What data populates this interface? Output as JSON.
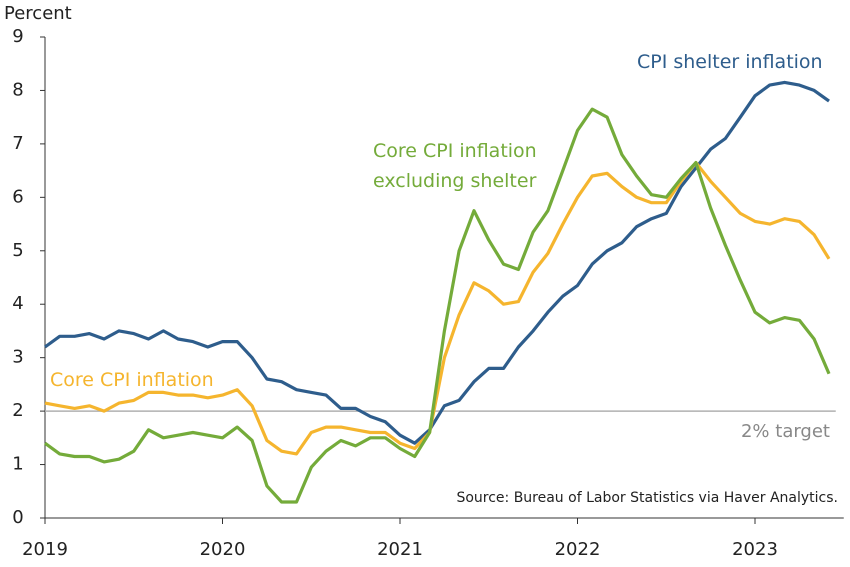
{
  "chart_data": {
    "type": "line",
    "y_label": "Percent",
    "source": "Source: Bureau of Labor Statistics via Haver Analytics.",
    "x": [
      2019,
      2019.083,
      2019.167,
      2019.25,
      2019.333,
      2019.417,
      2019.5,
      2019.583,
      2019.667,
      2019.75,
      2019.833,
      2019.917,
      2020,
      2020.083,
      2020.167,
      2020.25,
      2020.333,
      2020.417,
      2020.5,
      2020.583,
      2020.667,
      2020.75,
      2020.833,
      2020.917,
      2021,
      2021.083,
      2021.167,
      2021.25,
      2021.333,
      2021.417,
      2021.5,
      2021.583,
      2021.667,
      2021.75,
      2021.833,
      2021.917,
      2022,
      2022.083,
      2022.167,
      2022.25,
      2022.333,
      2022.417,
      2022.5,
      2022.583,
      2022.667,
      2022.75,
      2022.833,
      2022.917,
      2023,
      2023.083,
      2023.167,
      2023.25,
      2023.333,
      2023.417
    ],
    "series": [
      {
        "name": "CPI shelter inflation",
        "color": "#2e5d8c",
        "values": [
          3.2,
          3.4,
          3.4,
          3.45,
          3.35,
          3.5,
          3.45,
          3.35,
          3.5,
          3.35,
          3.3,
          3.2,
          3.3,
          3.3,
          3.0,
          2.6,
          2.55,
          2.4,
          2.35,
          2.3,
          2.05,
          2.05,
          1.9,
          1.8,
          1.55,
          1.4,
          1.65,
          2.1,
          2.2,
          2.55,
          2.8,
          2.8,
          3.2,
          3.5,
          3.85,
          4.15,
          4.35,
          4.75,
          5.0,
          5.15,
          5.45,
          5.6,
          5.7,
          6.2,
          6.55,
          6.9,
          7.1,
          7.5,
          7.9,
          8.1,
          8.15,
          8.1,
          8.0,
          7.8
        ]
      },
      {
        "name": "Core CPI inflation",
        "color": "#f5b52e",
        "values": [
          2.15,
          2.1,
          2.05,
          2.1,
          2.0,
          2.15,
          2.2,
          2.35,
          2.35,
          2.3,
          2.3,
          2.25,
          2.3,
          2.4,
          2.1,
          1.45,
          1.25,
          1.2,
          1.6,
          1.7,
          1.7,
          1.65,
          1.6,
          1.6,
          1.4,
          1.3,
          1.6,
          3.0,
          3.8,
          4.4,
          4.25,
          4.0,
          4.05,
          4.6,
          4.95,
          5.5,
          6.0,
          6.4,
          6.45,
          6.2,
          6.0,
          5.9,
          5.9,
          6.3,
          6.65,
          6.3,
          6.0,
          5.7,
          5.55,
          5.5,
          5.6,
          5.55,
          5.3,
          4.85
        ]
      },
      {
        "name": "Core CPI inflation excluding shelter",
        "color": "#74ab3a",
        "values": [
          1.4,
          1.2,
          1.15,
          1.15,
          1.05,
          1.1,
          1.25,
          1.65,
          1.5,
          1.55,
          1.6,
          1.55,
          1.5,
          1.7,
          1.45,
          0.6,
          0.3,
          0.3,
          0.95,
          1.25,
          1.45,
          1.35,
          1.5,
          1.5,
          1.3,
          1.15,
          1.6,
          3.5,
          5.0,
          5.75,
          5.2,
          4.75,
          4.65,
          5.35,
          5.75,
          6.5,
          7.25,
          7.65,
          7.5,
          6.8,
          6.4,
          6.05,
          6.0,
          6.35,
          6.65,
          5.8,
          5.1,
          4.45,
          3.85,
          3.65,
          3.75,
          3.7,
          3.35,
          2.7
        ]
      }
    ],
    "reference_lines": [
      {
        "value": 2,
        "label": "2% target",
        "color": "#b0b0b0"
      }
    ],
    "xlim": [
      2019,
      2023.5
    ],
    "xticks": [
      2019,
      2020,
      2021,
      2022,
      2023
    ],
    "ylim": [
      0,
      9
    ],
    "yticks": [
      0,
      1,
      2,
      3,
      4,
      5,
      6,
      7,
      8,
      9
    ],
    "grid": false
  }
}
